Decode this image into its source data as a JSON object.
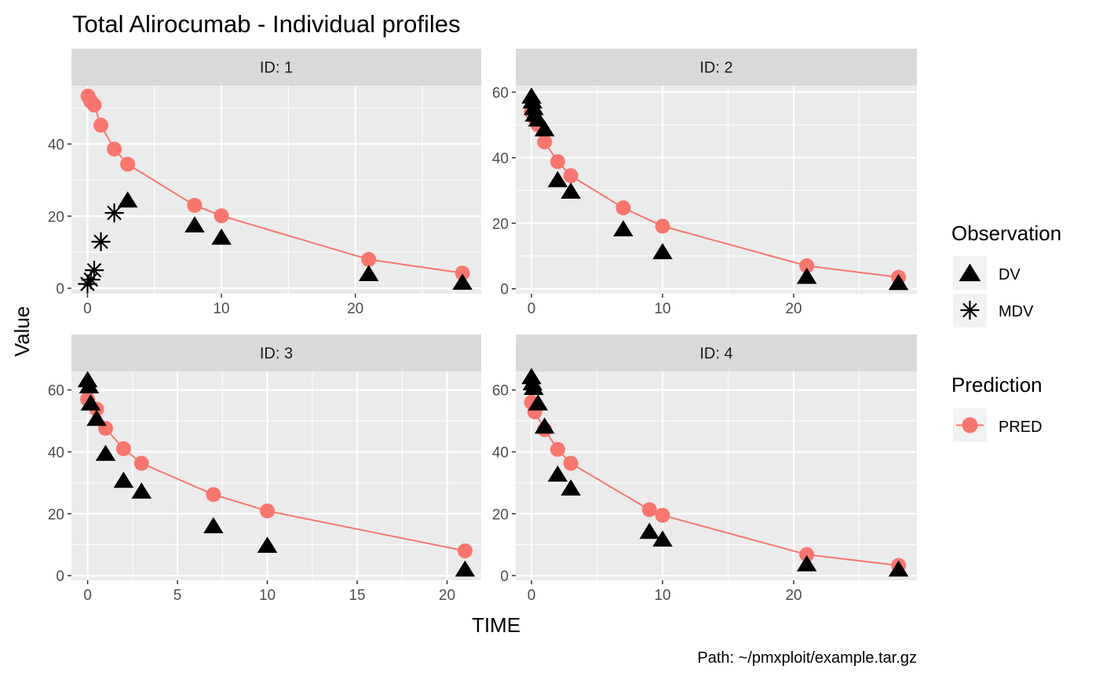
{
  "page": {
    "title": "Total Alirocumab - Individual profiles",
    "xlabel": "TIME",
    "ylabel": "Value",
    "caption": "Path: ~/pmxploit/example.tar.gz"
  },
  "legend": {
    "observation_title": "Observation",
    "observation_items": [
      {
        "label": "DV",
        "shape": "triangle"
      },
      {
        "label": "MDV",
        "shape": "asterisk"
      }
    ],
    "prediction_title": "Prediction",
    "prediction_items": [
      {
        "label": "PRED",
        "shape": "circle-line"
      }
    ]
  },
  "colors": {
    "panel_bg": "#EBEBEB",
    "strip_bg": "#D9D9D9",
    "grid": "#FFFFFF",
    "pred": "#F8766D",
    "obs": "#000000",
    "text": "#000000",
    "tick_text": "#4D4D4D"
  },
  "chart_data": {
    "type": "scatter",
    "facet_by": "ID",
    "x_axis_label": "TIME",
    "y_axis_label": "Value",
    "grid": true,
    "legend_position": "right",
    "panels": [
      {
        "strip": "ID: 1",
        "xlim": [
          -1.2,
          29.4
        ],
        "ylim": [
          -1.5,
          56.2
        ],
        "xticks": [
          0,
          10,
          20
        ],
        "yticks": [
          0,
          20,
          40
        ],
        "pred": [
          [
            0.04,
            53.3
          ],
          [
            0.25,
            51.8
          ],
          [
            0.5,
            50.8
          ],
          [
            1,
            45.2
          ],
          [
            2,
            38.6
          ],
          [
            3,
            34.4
          ],
          [
            8,
            23.0
          ],
          [
            10,
            20.1
          ],
          [
            21,
            8.0
          ],
          [
            28,
            4.2
          ]
        ],
        "dv": [
          [
            3,
            24.2
          ],
          [
            8,
            17.3
          ],
          [
            10,
            13.9
          ],
          [
            21,
            3.8
          ],
          [
            28,
            1.4
          ]
        ],
        "mdv": [
          [
            0,
            1.2
          ],
          [
            0.25,
            2.4
          ],
          [
            0.5,
            5.0
          ],
          [
            1,
            12.9
          ],
          [
            2,
            20.9
          ]
        ]
      },
      {
        "strip": "ID: 2",
        "xlim": [
          -1.2,
          29.4
        ],
        "ylim": [
          -1.5,
          62.0
        ],
        "xticks": [
          0,
          10,
          20
        ],
        "yticks": [
          0,
          20,
          40,
          60
        ],
        "pred": [
          [
            0,
            54.0
          ],
          [
            0.25,
            52.0
          ],
          [
            0.5,
            50.0
          ],
          [
            1,
            44.8
          ],
          [
            2,
            38.8
          ],
          [
            3,
            34.5
          ],
          [
            7,
            24.7
          ],
          [
            10,
            19.1
          ],
          [
            21,
            7.0
          ],
          [
            28,
            3.5
          ]
        ],
        "dv": [
          [
            0,
            58.5
          ],
          [
            0.08,
            57.0
          ],
          [
            0.17,
            55.0
          ],
          [
            0.25,
            53.0
          ],
          [
            0.5,
            51.5
          ],
          [
            1,
            48.5
          ],
          [
            2,
            33.0
          ],
          [
            3,
            29.5
          ],
          [
            7,
            18.0
          ],
          [
            10,
            11.0
          ],
          [
            21,
            3.5
          ],
          [
            28,
            1.6
          ]
        ],
        "mdv": []
      },
      {
        "strip": "ID: 3",
        "xlim": [
          -0.9,
          21.9
        ],
        "ylim": [
          -1.5,
          66.0
        ],
        "xticks": [
          0,
          5,
          10,
          15,
          20
        ],
        "yticks": [
          0,
          20,
          40,
          60
        ],
        "pred": [
          [
            0,
            57.0
          ],
          [
            0.5,
            53.8
          ],
          [
            1,
            47.6
          ],
          [
            2,
            41.0
          ],
          [
            3,
            36.3
          ],
          [
            7,
            26.2
          ],
          [
            10,
            20.9
          ],
          [
            21,
            8.0
          ]
        ],
        "dv": [
          [
            0,
            63.0
          ],
          [
            0.08,
            61.0
          ],
          [
            0.17,
            55.5
          ],
          [
            0.5,
            50.5
          ],
          [
            1,
            39.2
          ],
          [
            2,
            30.5
          ],
          [
            3,
            27.0
          ],
          [
            7,
            15.8
          ],
          [
            10,
            9.5
          ],
          [
            21,
            1.8
          ]
        ],
        "mdv": []
      },
      {
        "strip": "ID: 4",
        "xlim": [
          -1.2,
          29.4
        ],
        "ylim": [
          -1.5,
          66.0
        ],
        "xticks": [
          0,
          10,
          20
        ],
        "yticks": [
          0,
          20,
          40,
          60
        ],
        "pred": [
          [
            0,
            56.0
          ],
          [
            0.25,
            52.9
          ],
          [
            1,
            47.2
          ],
          [
            2,
            40.8
          ],
          [
            3,
            36.3
          ],
          [
            9,
            21.3
          ],
          [
            10,
            19.5
          ],
          [
            21,
            6.8
          ],
          [
            28,
            3.3
          ]
        ],
        "dv": [
          [
            0,
            64.0
          ],
          [
            0.08,
            62.0
          ],
          [
            0.17,
            60.5
          ],
          [
            0.5,
            55.5
          ],
          [
            1,
            48.0
          ],
          [
            2,
            32.5
          ],
          [
            3,
            28.0
          ],
          [
            9,
            14.0
          ],
          [
            10,
            11.5
          ],
          [
            21,
            3.5
          ],
          [
            28,
            1.8
          ]
        ],
        "mdv": []
      }
    ]
  }
}
